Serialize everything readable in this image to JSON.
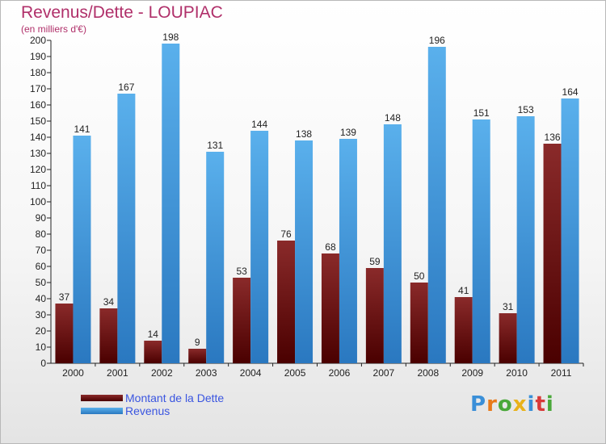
{
  "title": "Revenus/Dette - LOUPIAC",
  "subtitle": "(en milliers d'€)",
  "logo_text": "Proxiti",
  "colors": {
    "debt": "#6e1010",
    "revenue": "#4a9ee0",
    "title": "#b0306a",
    "legend_text": "#3a55e0"
  },
  "legend": {
    "debt_label": "Montant de la Dette",
    "revenue_label": "Revenus"
  },
  "chart_data": {
    "type": "bar",
    "categories": [
      "2000",
      "2001",
      "2002",
      "2003",
      "2004",
      "2005",
      "2006",
      "2007",
      "2008",
      "2009",
      "2010",
      "2011"
    ],
    "series": [
      {
        "name": "Montant de la Dette",
        "values": [
          37,
          34,
          14,
          9,
          53,
          76,
          68,
          59,
          50,
          41,
          31,
          136
        ]
      },
      {
        "name": "Revenus",
        "values": [
          141,
          167,
          198,
          131,
          144,
          138,
          139,
          148,
          196,
          151,
          153,
          164
        ]
      }
    ],
    "ylim": [
      0,
      200
    ],
    "yticks": [
      0,
      10,
      20,
      30,
      40,
      50,
      60,
      70,
      80,
      90,
      100,
      110,
      120,
      130,
      140,
      150,
      160,
      170,
      180,
      190,
      200
    ],
    "grid": false,
    "legend_position": "bottom-left"
  }
}
